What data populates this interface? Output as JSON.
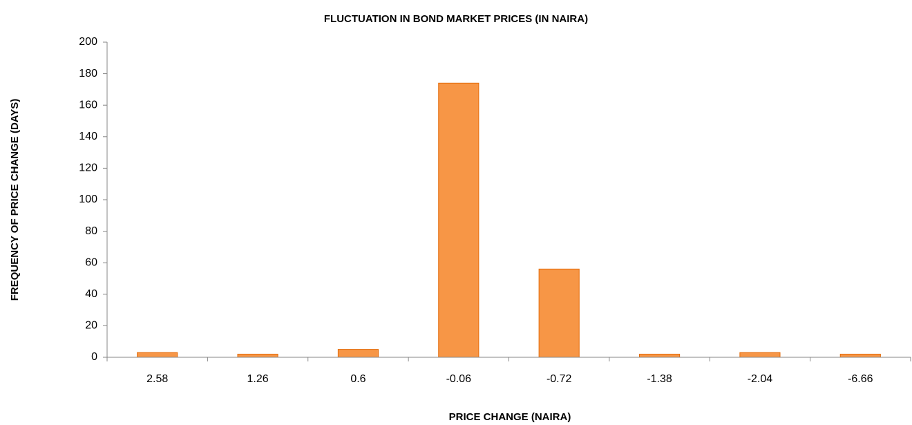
{
  "chart_data": {
    "type": "bar",
    "title": "FLUCTUATION IN BOND MARKET PRICES (IN NAIRA)",
    "x_label": "PRICE CHANGE (NAIRA)",
    "y_label": "FREQUENCY  OF PRICE  CHANGE   (DAYS)",
    "categories": [
      "2.58",
      "1.26",
      "0.6",
      "-0.06",
      "-0.72",
      "-1.38",
      "-2.04",
      "-6.66"
    ],
    "values": [
      3,
      2,
      5,
      174,
      56,
      2,
      3,
      2
    ],
    "color": "#f79646",
    "ylim": [
      0,
      200
    ],
    "yticks": [
      0,
      20,
      40,
      60,
      80,
      100,
      120,
      140,
      160,
      180,
      200
    ],
    "grid": false
  }
}
